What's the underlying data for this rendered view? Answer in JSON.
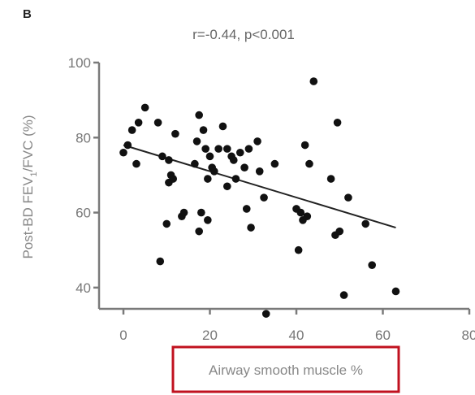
{
  "panel_label": "B",
  "colors": {
    "axis": "#7a7a7a",
    "points": "#111111",
    "trend": "#222222",
    "highlight_box": "#c0111f"
  },
  "chart_data": {
    "type": "scatter",
    "annotation": "r=-0.44, p<0.001",
    "xlabel": "Airway smooth muscle %",
    "ylabel_parts": [
      "Post-BD FEV",
      "1",
      "/FVC (%)"
    ],
    "xlim": [
      0,
      80
    ],
    "ylim": [
      30,
      100
    ],
    "xticks": [
      0,
      20,
      40,
      60,
      80
    ],
    "yticks": [
      40,
      60,
      80,
      100
    ],
    "trendline": {
      "x": [
        0,
        63
      ],
      "y": [
        78,
        56
      ]
    },
    "points": [
      {
        "x": 0,
        "y": 76
      },
      {
        "x": 1,
        "y": 78
      },
      {
        "x": 2,
        "y": 82
      },
      {
        "x": 3,
        "y": 73
      },
      {
        "x": 3.5,
        "y": 84
      },
      {
        "x": 5,
        "y": 88
      },
      {
        "x": 8,
        "y": 84
      },
      {
        "x": 8.5,
        "y": 47
      },
      {
        "x": 9,
        "y": 75
      },
      {
        "x": 10,
        "y": 57
      },
      {
        "x": 10.5,
        "y": 74
      },
      {
        "x": 10.5,
        "y": 68
      },
      {
        "x": 11,
        "y": 70
      },
      {
        "x": 11.5,
        "y": 69
      },
      {
        "x": 12,
        "y": 81
      },
      {
        "x": 13.5,
        "y": 59
      },
      {
        "x": 14,
        "y": 60
      },
      {
        "x": 16.5,
        "y": 73
      },
      {
        "x": 17,
        "y": 79
      },
      {
        "x": 17.5,
        "y": 86
      },
      {
        "x": 17.5,
        "y": 55
      },
      {
        "x": 18,
        "y": 60
      },
      {
        "x": 18.5,
        "y": 82
      },
      {
        "x": 19,
        "y": 77
      },
      {
        "x": 19.5,
        "y": 58
      },
      {
        "x": 19.5,
        "y": 69
      },
      {
        "x": 20,
        "y": 75
      },
      {
        "x": 20.5,
        "y": 72
      },
      {
        "x": 21,
        "y": 71
      },
      {
        "x": 22,
        "y": 77
      },
      {
        "x": 23,
        "y": 83
      },
      {
        "x": 24,
        "y": 77
      },
      {
        "x": 24,
        "y": 67
      },
      {
        "x": 25,
        "y": 75
      },
      {
        "x": 25.5,
        "y": 74
      },
      {
        "x": 26,
        "y": 69
      },
      {
        "x": 27,
        "y": 76
      },
      {
        "x": 28,
        "y": 72
      },
      {
        "x": 28.5,
        "y": 61
      },
      {
        "x": 29,
        "y": 77
      },
      {
        "x": 29.5,
        "y": 56
      },
      {
        "x": 31,
        "y": 79
      },
      {
        "x": 31.5,
        "y": 71
      },
      {
        "x": 32.5,
        "y": 64
      },
      {
        "x": 33,
        "y": 33
      },
      {
        "x": 35,
        "y": 73
      },
      {
        "x": 40,
        "y": 61
      },
      {
        "x": 40.5,
        "y": 50
      },
      {
        "x": 41,
        "y": 60
      },
      {
        "x": 41.5,
        "y": 58
      },
      {
        "x": 42,
        "y": 78
      },
      {
        "x": 42.5,
        "y": 59
      },
      {
        "x": 43,
        "y": 73
      },
      {
        "x": 44,
        "y": 95
      },
      {
        "x": 48,
        "y": 69
      },
      {
        "x": 49,
        "y": 54
      },
      {
        "x": 49.5,
        "y": 84
      },
      {
        "x": 50,
        "y": 55
      },
      {
        "x": 51,
        "y": 38
      },
      {
        "x": 52,
        "y": 64
      },
      {
        "x": 56,
        "y": 57
      },
      {
        "x": 57.5,
        "y": 46
      },
      {
        "x": 63,
        "y": 39
      }
    ]
  }
}
